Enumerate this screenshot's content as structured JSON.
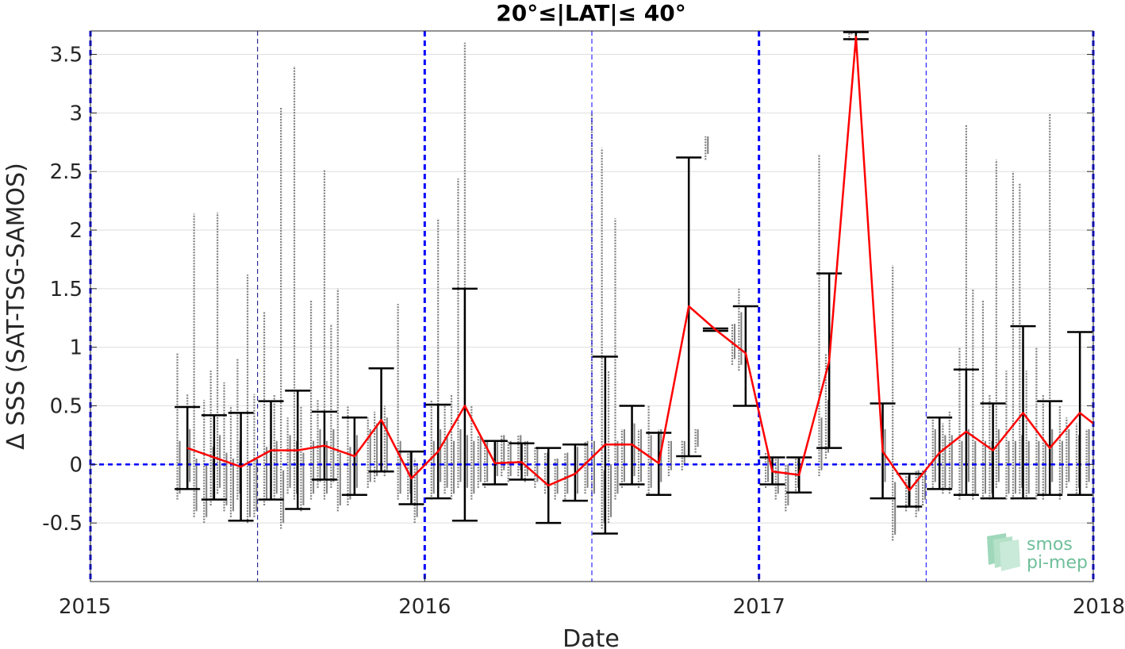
{
  "chart_data": {
    "type": "line",
    "title": "20°≤|LAT|≤ 40°",
    "xlabel": "Date",
    "ylabel": "Δ SSS (SAT-TSG-SAMOS)",
    "xlim": [
      2015.0,
      2018.0
    ],
    "ylim": [
      -1.0,
      3.7
    ],
    "x_ticks": [
      {
        "value": 2015,
        "label": "2015"
      },
      {
        "value": 2016,
        "label": "2016"
      },
      {
        "value": 2017,
        "label": "2017"
      },
      {
        "value": 2018,
        "label": "2018"
      }
    ],
    "y_ticks": [
      {
        "value": 3.5,
        "label": "3.5"
      },
      {
        "value": 3.0,
        "label": "3"
      },
      {
        "value": 2.5,
        "label": "2.5"
      },
      {
        "value": 2.0,
        "label": "2"
      },
      {
        "value": 1.5,
        "label": "1.5"
      },
      {
        "value": 1.0,
        "label": "1"
      },
      {
        "value": 0.5,
        "label": "0.5"
      },
      {
        "value": 0.0,
        "label": "0"
      },
      {
        "value": -0.5,
        "label": "-0.5"
      }
    ],
    "grid": "horizontal",
    "reference_line_y": 0,
    "year_lines": [
      2015.0,
      2016.0,
      2017.0,
      2018.0
    ],
    "half_year_lines": [
      2015.5,
      2016.5,
      2017.5
    ],
    "series": [
      {
        "color": "#ff0000",
        "x": [
          2015.29,
          2015.37,
          2015.45,
          2015.54,
          2015.62,
          2015.7,
          2015.79,
          2015.87,
          2015.96,
          2016.04,
          2016.12,
          2016.21,
          2016.29,
          2016.37,
          2016.45,
          2016.54,
          2016.62,
          2016.7,
          2016.79,
          2016.87,
          2016.96,
          2017.04,
          2017.12,
          2017.21,
          2017.29,
          2017.37,
          2017.45,
          2017.54,
          2017.62,
          2017.7,
          2017.79,
          2017.87,
          2017.96,
          2018.0
        ],
        "y": [
          0.14,
          0.06,
          -0.02,
          0.12,
          0.12,
          0.16,
          0.07,
          0.38,
          -0.12,
          0.11,
          0.5,
          0.01,
          0.02,
          -0.18,
          -0.08,
          0.17,
          0.17,
          0.01,
          1.35,
          1.15,
          0.95,
          -0.06,
          -0.09,
          0.88,
          3.65,
          0.11,
          -0.22,
          0.1,
          0.28,
          0.12,
          0.44,
          0.14,
          0.44,
          0.35
        ],
        "error_low": [
          -0.21,
          -0.3,
          -0.48,
          -0.3,
          -0.38,
          -0.13,
          -0.26,
          -0.06,
          -0.34,
          -0.29,
          -0.48,
          -0.17,
          -0.13,
          -0.5,
          -0.31,
          -0.59,
          -0.17,
          -0.26,
          0.07,
          1.14,
          0.5,
          -0.17,
          -0.24,
          0.14,
          3.63,
          -0.29,
          -0.36,
          -0.21,
          -0.26,
          -0.29,
          -0.29,
          -0.26,
          -0.26,
          null
        ],
        "error_high": [
          0.49,
          0.42,
          0.44,
          0.54,
          0.63,
          0.45,
          0.4,
          0.82,
          0.11,
          0.51,
          1.5,
          0.2,
          0.18,
          0.14,
          0.17,
          0.92,
          0.5,
          0.27,
          2.62,
          1.16,
          1.35,
          0.06,
          0.06,
          1.63,
          3.69,
          0.52,
          -0.08,
          0.4,
          0.81,
          0.52,
          1.18,
          0.54,
          1.13,
          null
        ]
      }
    ],
    "scatter_color": "#808080",
    "scatter_points": [
      [
        2015.26,
        -0.3,
        0.95
      ],
      [
        2015.29,
        -0.2,
        0.6
      ],
      [
        2015.31,
        -0.45,
        2.14
      ],
      [
        2015.34,
        -0.5,
        0.55
      ],
      [
        2015.36,
        -0.35,
        0.8
      ],
      [
        2015.38,
        -0.25,
        2.15
      ],
      [
        2015.4,
        -0.4,
        0.7
      ],
      [
        2015.42,
        -0.45,
        0.5
      ],
      [
        2015.44,
        -0.3,
        0.9
      ],
      [
        2015.47,
        -0.5,
        1.62
      ],
      [
        2015.49,
        -0.45,
        0.6
      ],
      [
        2015.52,
        -0.35,
        1.3
      ],
      [
        2015.55,
        -0.3,
        0.6
      ],
      [
        2015.57,
        -0.55,
        3.05
      ],
      [
        2015.59,
        -0.25,
        0.4
      ],
      [
        2015.61,
        -0.3,
        3.4
      ],
      [
        2015.63,
        -0.4,
        0.5
      ],
      [
        2015.66,
        -0.3,
        1.4
      ],
      [
        2015.68,
        -0.2,
        0.55
      ],
      [
        2015.7,
        -0.3,
        2.52
      ],
      [
        2015.72,
        -0.2,
        1.2
      ],
      [
        2015.74,
        -0.4,
        1.5
      ],
      [
        2015.77,
        -0.35,
        0.5
      ],
      [
        2015.79,
        -0.25,
        0.4
      ],
      [
        2015.83,
        -0.2,
        0.4
      ],
      [
        2015.85,
        -0.15,
        0.45
      ],
      [
        2015.88,
        -0.1,
        0.5
      ],
      [
        2015.92,
        -0.3,
        1.37
      ],
      [
        2015.95,
        -0.3,
        0.1
      ],
      [
        2015.97,
        -0.5,
        0.05
      ],
      [
        2016.02,
        -0.3,
        0.55
      ],
      [
        2016.04,
        -0.2,
        2.1
      ],
      [
        2016.06,
        -0.25,
        0.5
      ],
      [
        2016.08,
        -0.3,
        0.6
      ],
      [
        2016.1,
        -0.2,
        2.44
      ],
      [
        2016.12,
        -0.25,
        3.6
      ],
      [
        2016.14,
        -0.3,
        0.5
      ],
      [
        2016.16,
        -0.2,
        0.25
      ],
      [
        2016.18,
        -0.2,
        0.2
      ],
      [
        2016.21,
        -0.15,
        0.2
      ],
      [
        2016.23,
        -0.1,
        0.25
      ],
      [
        2016.25,
        -0.15,
        0.2
      ],
      [
        2016.28,
        -0.1,
        0.25
      ],
      [
        2016.3,
        -0.15,
        0.2
      ],
      [
        2016.33,
        -0.2,
        0.15
      ],
      [
        2016.36,
        -0.25,
        0.1
      ],
      [
        2016.39,
        -0.3,
        0.05
      ],
      [
        2016.42,
        -0.3,
        0.1
      ],
      [
        2016.45,
        -0.3,
        0.15
      ],
      [
        2016.48,
        -0.25,
        0.2
      ],
      [
        2016.5,
        -0.3,
        3.0
      ],
      [
        2016.53,
        -0.55,
        2.7
      ],
      [
        2016.55,
        -0.5,
        0.8
      ],
      [
        2016.57,
        -0.3,
        2.1
      ],
      [
        2016.59,
        -0.2,
        0.3
      ],
      [
        2016.62,
        -0.15,
        0.4
      ],
      [
        2016.64,
        -0.2,
        0.3
      ],
      [
        2016.67,
        -0.25,
        0.5
      ],
      [
        2016.7,
        -0.2,
        0.3
      ],
      [
        2016.73,
        -0.1,
        0.2
      ],
      [
        2016.77,
        -0.05,
        0.2
      ],
      [
        2016.81,
        0.1,
        0.3
      ],
      [
        2016.84,
        2.6,
        2.8
      ],
      [
        2016.92,
        0.85,
        1.2
      ],
      [
        2016.94,
        0.8,
        1.5
      ],
      [
        2017.02,
        -0.2,
        0.1
      ],
      [
        2017.05,
        -0.3,
        0.05
      ],
      [
        2017.08,
        -0.4,
        0.0
      ],
      [
        2017.11,
        -0.25,
        0.05
      ],
      [
        2017.18,
        -0.1,
        2.65
      ],
      [
        2017.2,
        0.05,
        0.95
      ],
      [
        2017.27,
        3.62,
        3.7
      ],
      [
        2017.37,
        -0.2,
        0.5
      ],
      [
        2017.4,
        -0.65,
        1.7
      ],
      [
        2017.44,
        -0.4,
        -0.1
      ],
      [
        2017.47,
        -0.45,
        -0.05
      ],
      [
        2017.49,
        -0.35,
        -0.05
      ],
      [
        2017.52,
        -0.2,
        0.4
      ],
      [
        2017.55,
        -0.25,
        0.35
      ],
      [
        2017.57,
        -0.25,
        0.45
      ],
      [
        2017.6,
        -0.3,
        1.0
      ],
      [
        2017.62,
        -0.2,
        2.9
      ],
      [
        2017.64,
        -0.3,
        1.5
      ],
      [
        2017.67,
        -0.3,
        1.4
      ],
      [
        2017.69,
        -0.3,
        0.6
      ],
      [
        2017.71,
        -0.2,
        2.6
      ],
      [
        2017.74,
        -0.3,
        0.8
      ],
      [
        2017.76,
        -0.3,
        2.5
      ],
      [
        2017.78,
        -0.25,
        2.4
      ],
      [
        2017.8,
        -0.3,
        0.8
      ],
      [
        2017.83,
        -0.3,
        1.0
      ],
      [
        2017.85,
        -0.3,
        0.6
      ],
      [
        2017.87,
        -0.2,
        3.0
      ],
      [
        2017.9,
        -0.3,
        0.5
      ],
      [
        2017.92,
        -0.2,
        0.4
      ],
      [
        2017.95,
        -0.25,
        0.35
      ],
      [
        2017.98,
        -0.2,
        0.3
      ]
    ]
  },
  "logo": {
    "line1": "smos",
    "line2": "pi-mep"
  }
}
